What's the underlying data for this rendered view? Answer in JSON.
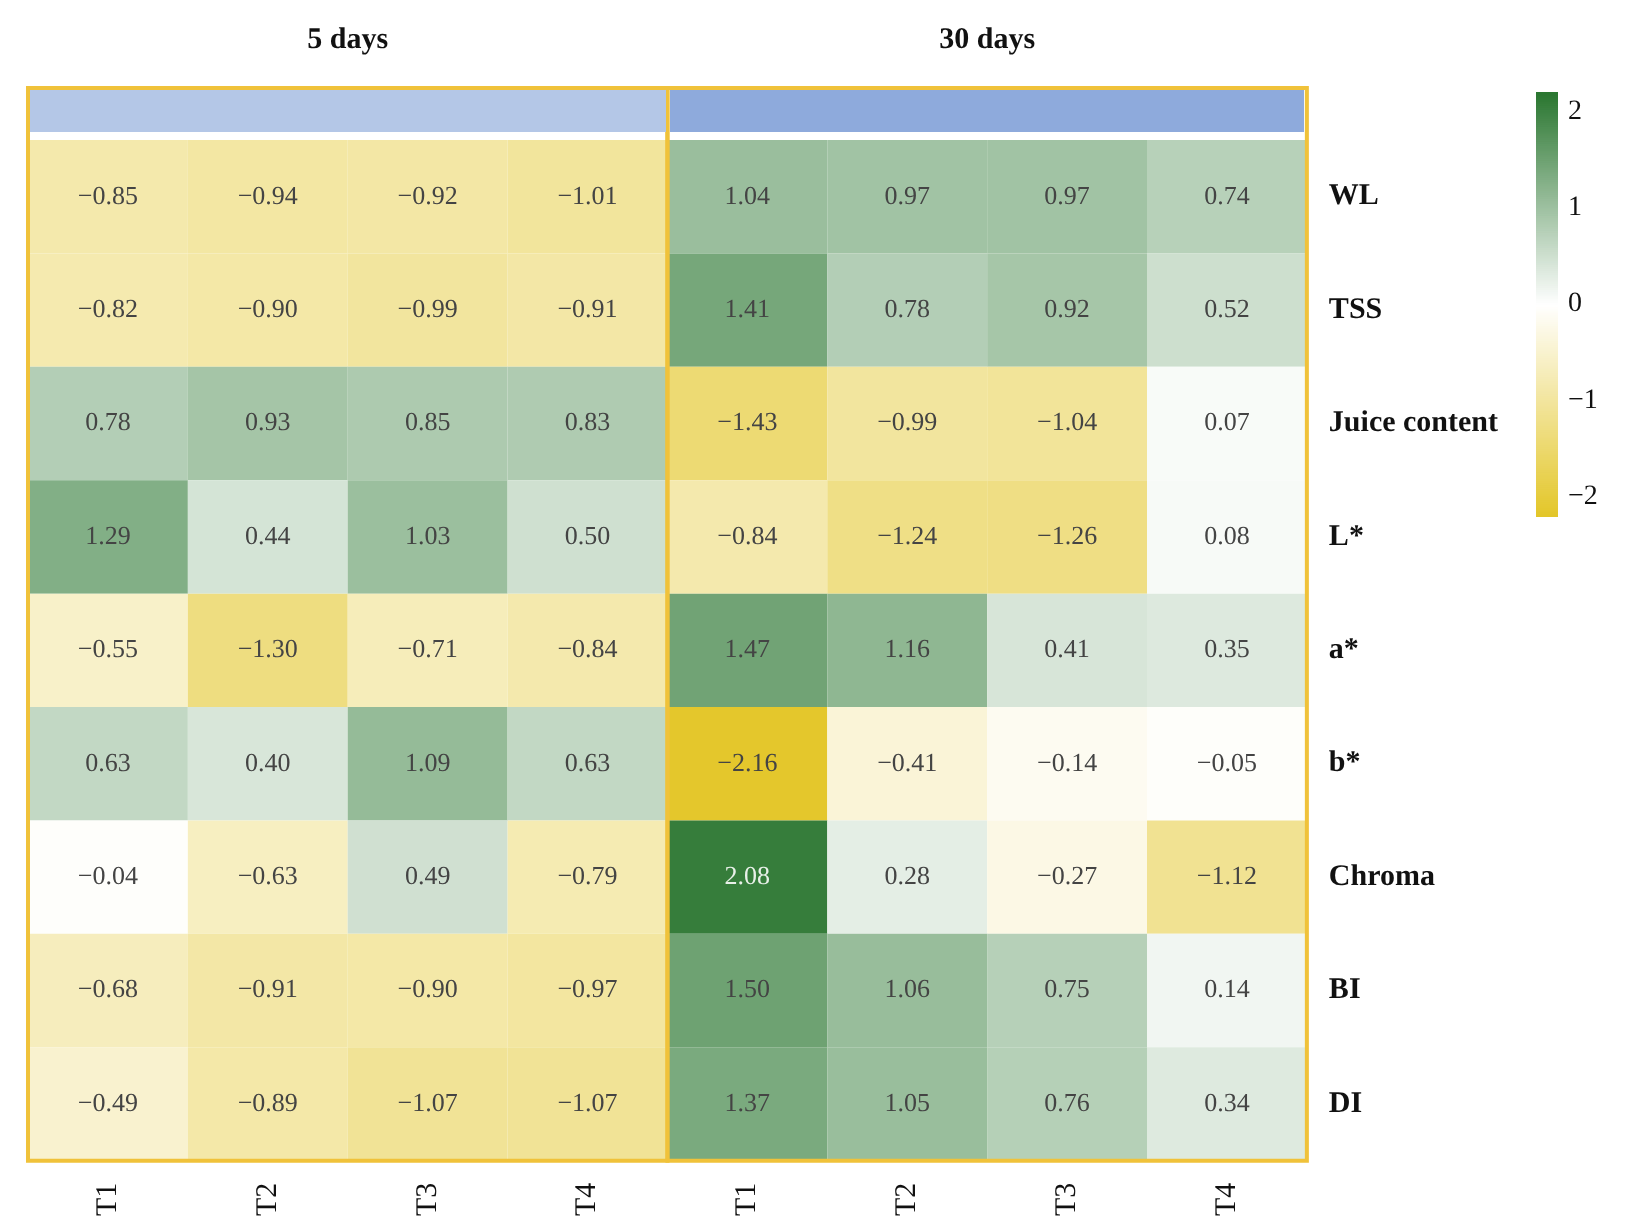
{
  "chart_data": {
    "type": "heatmap",
    "annotations": [
      "5 days",
      "30 days"
    ],
    "categories": [
      "T1",
      "T2",
      "T3",
      "T4",
      "T1",
      "T2",
      "T3",
      "T4"
    ],
    "y_categories": [
      "WL",
      "TSS",
      "Juice content",
      "L*",
      "a*",
      "b*",
      "Chroma",
      "BI",
      "DI"
    ],
    "cells": [
      [
        -0.85,
        -0.94,
        -0.92,
        -1.01,
        1.04,
        0.97,
        0.97,
        0.74
      ],
      [
        -0.82,
        -0.9,
        -0.99,
        -0.91,
        1.41,
        0.78,
        0.92,
        0.52
      ],
      [
        0.78,
        0.93,
        0.85,
        0.83,
        -1.43,
        -0.99,
        -1.04,
        0.07
      ],
      [
        1.29,
        0.44,
        1.03,
        0.5,
        -0.84,
        -1.24,
        -1.26,
        0.08
      ],
      [
        -0.55,
        -1.3,
        -0.71,
        -0.84,
        1.47,
        1.16,
        0.41,
        0.35
      ],
      [
        0.63,
        0.4,
        1.09,
        0.63,
        -2.16,
        -0.41,
        -0.14,
        -0.05
      ],
      [
        -0.04,
        -0.63,
        0.49,
        -0.79,
        2.08,
        0.28,
        -0.27,
        -1.12
      ],
      [
        -0.68,
        -0.91,
        -0.9,
        -0.97,
        1.5,
        1.06,
        0.75,
        0.14
      ],
      [
        -0.49,
        -0.89,
        -1.07,
        -1.07,
        1.37,
        1.05,
        0.76,
        0.34
      ]
    ],
    "cell_labels": [
      [
        "−0.85",
        "−0.94",
        "−0.92",
        "−1.01",
        "1.04",
        "0.97",
        "0.97",
        "0.74"
      ],
      [
        "−0.82",
        "−0.90",
        "−0.99",
        "−0.91",
        "1.41",
        "0.78",
        "0.92",
        "0.52"
      ],
      [
        "0.78",
        "0.93",
        "0.85",
        "0.83",
        "−1.43",
        "−0.99",
        "−1.04",
        "0.07"
      ],
      [
        "1.29",
        "0.44",
        "1.03",
        "0.50",
        "−0.84",
        "−1.24",
        "−1.26",
        "0.08"
      ],
      [
        "−0.55",
        "−1.30",
        "−0.71",
        "−0.84",
        "1.47",
        "1.16",
        "0.41",
        "0.35"
      ],
      [
        "0.63",
        "0.40",
        "1.09",
        "0.63",
        "−2.16",
        "−0.41",
        "−0.14",
        "−0.05"
      ],
      [
        "−0.04",
        "−0.63",
        "0.49",
        "−0.79",
        "2.08",
        "0.28",
        "−0.27",
        "−1.12"
      ],
      [
        "−0.68",
        "−0.91",
        "−0.90",
        "−0.97",
        "1.50",
        "1.06",
        "0.75",
        "0.14"
      ],
      [
        "−0.49",
        "−0.89",
        "−1.07",
        "−1.07",
        "1.37",
        "1.05",
        "0.76",
        "0.34"
      ]
    ],
    "clim": [
      -2.2,
      2.2
    ],
    "cticks": [
      {
        "value": -2,
        "label": "−2"
      },
      {
        "value": -1,
        "label": "−1"
      },
      0,
      1,
      2
    ]
  }
}
